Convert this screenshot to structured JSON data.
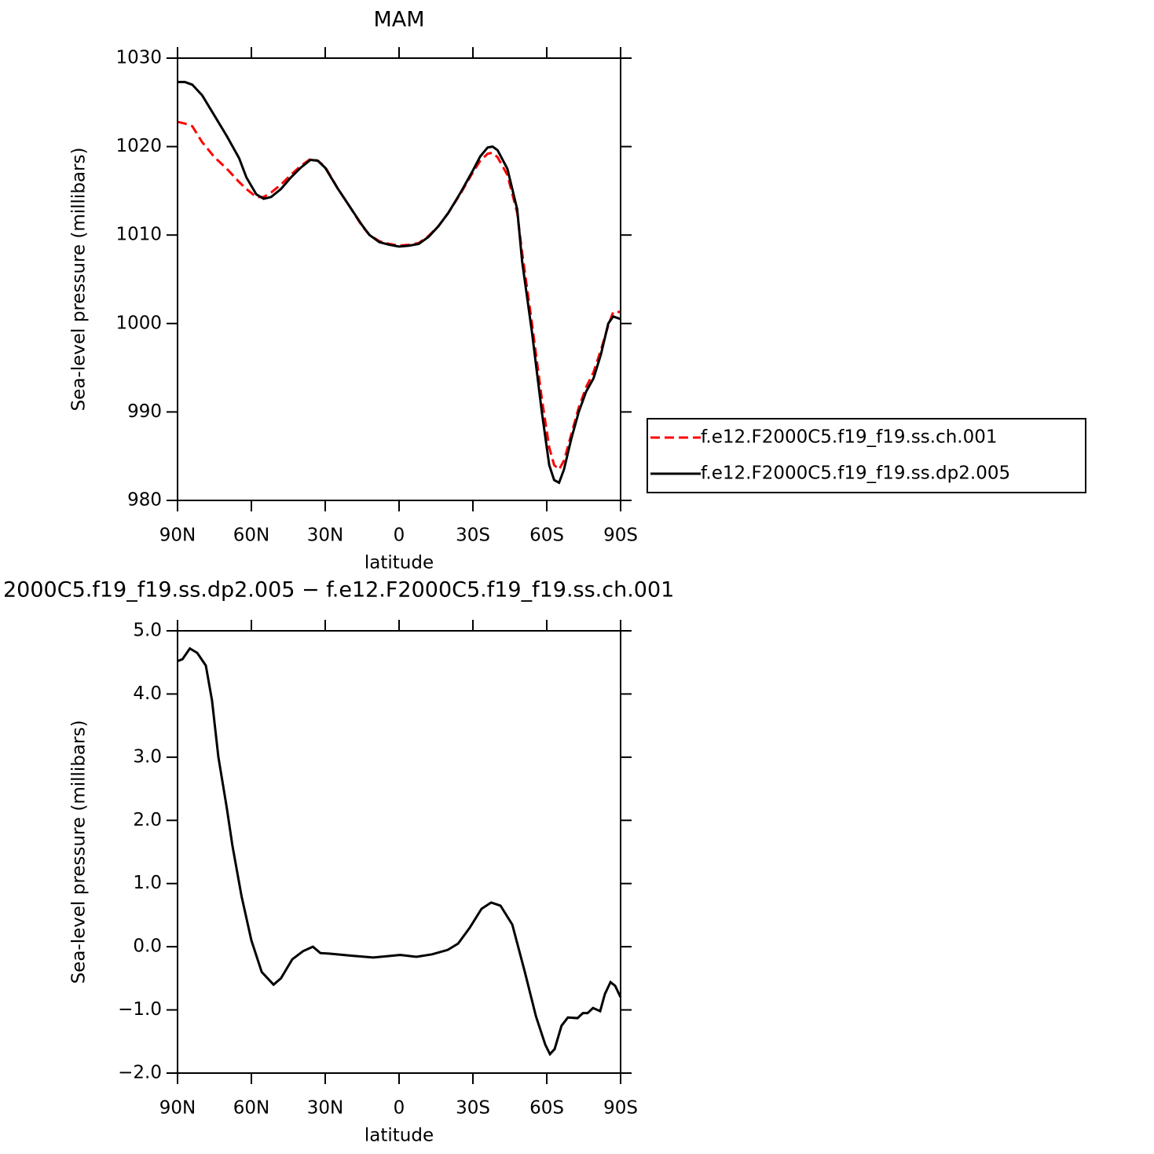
{
  "chart_data": [
    {
      "type": "line",
      "title": "MAM",
      "xlabel": "latitude",
      "ylabel": "Sea-level pressure (millibars)",
      "x": [
        90,
        87,
        84,
        80,
        75,
        70,
        65,
        62,
        58,
        55,
        52,
        48,
        44,
        40,
        36,
        33,
        30,
        25,
        20,
        15,
        12,
        8,
        4,
        0,
        -4,
        -8,
        -12,
        -16,
        -20,
        -25,
        -30,
        -33,
        -36,
        -38,
        -40,
        -44,
        -48,
        -50,
        -54,
        -58,
        -61,
        -63,
        -65,
        -67,
        -70,
        -73,
        -76,
        -79,
        -82,
        -85,
        -87,
        -90
      ],
      "series": [
        {
          "name": "f.e12.F2000C5.f19_f19.ss.ch.001",
          "color": "#ff0000",
          "dashed": true,
          "values": [
            1022.8,
            1022.6,
            1022.3,
            1020.5,
            1018.8,
            1017.5,
            1016.0,
            1015.2,
            1014.3,
            1014.3,
            1014.8,
            1015.7,
            1016.8,
            1017.8,
            1018.6,
            1018.4,
            1017.7,
            1015.3,
            1013.2,
            1011.0,
            1010.0,
            1009.3,
            1009.0,
            1008.8,
            1008.9,
            1009.1,
            1009.9,
            1011.0,
            1012.5,
            1014.7,
            1017.1,
            1018.4,
            1019.2,
            1019.3,
            1018.8,
            1016.8,
            1012.5,
            1008.0,
            1000.0,
            991.5,
            986.0,
            984.0,
            983.5,
            984.5,
            987.5,
            990.5,
            992.8,
            994.5,
            997.0,
            999.8,
            1001.3,
            1001.3
          ]
        },
        {
          "name": "f.e12.F2000C5.f19_f19.ss.dp2.005",
          "color": "#000000",
          "dashed": false,
          "values": [
            1027.3,
            1027.3,
            1027.0,
            1025.8,
            1023.5,
            1021.2,
            1018.7,
            1016.5,
            1014.6,
            1014.1,
            1014.3,
            1015.2,
            1016.5,
            1017.6,
            1018.5,
            1018.4,
            1017.6,
            1015.3,
            1013.2,
            1011.1,
            1010.0,
            1009.2,
            1008.9,
            1008.7,
            1008.8,
            1009.0,
            1009.8,
            1011.0,
            1012.5,
            1014.8,
            1017.3,
            1018.9,
            1019.9,
            1020.0,
            1019.6,
            1017.5,
            1012.9,
            1007.0,
            999.0,
            990.0,
            984.0,
            982.3,
            982.0,
            983.5,
            987.0,
            990.0,
            992.3,
            993.8,
            996.5,
            1000.0,
            1000.8,
            1000.5
          ]
        }
      ],
      "xlim": [
        90,
        -90
      ],
      "xticks": [
        {
          "value": 90,
          "label": "90N"
        },
        {
          "value": 60,
          "label": "60N"
        },
        {
          "value": 30,
          "label": "30N"
        },
        0,
        {
          "value": -30,
          "label": "30S"
        },
        {
          "value": -60,
          "label": "60S"
        },
        {
          "value": -90,
          "label": "90S"
        }
      ],
      "ylim": [
        980,
        1030
      ],
      "yticks": [
        980,
        990,
        1000,
        1010,
        1020,
        1030
      ],
      "legend": "right"
    },
    {
      "type": "line",
      "title": "2000C5.f19_f19.ss.dp2.005 − f.e12.F2000C5.f19_f19.ss.ch.001",
      "xlabel": "latitude",
      "ylabel": "Sea-level pressure (millibars)",
      "x": [
        90,
        88,
        85,
        82,
        78.5,
        76,
        73.4,
        70,
        67.7,
        64,
        60,
        55.8,
        51,
        48,
        43.4,
        39,
        35,
        32,
        28,
        20,
        10.5,
        5,
        -0.6,
        -7,
        -13.4,
        -19.8,
        -24,
        -28.7,
        -33.5,
        -37.4,
        -41.2,
        -46,
        -51.1,
        -55.6,
        -59.4,
        -61.3,
        -63.2,
        -66,
        -68.6,
        -72.5,
        -74.7,
        -76.6,
        -78.8,
        -81.7,
        -83.6,
        -85.9,
        -87.8,
        -90
      ],
      "series": [
        {
          "name": "difference",
          "color": "#000000",
          "dashed": false,
          "values": [
            4.52,
            4.55,
            4.72,
            4.65,
            4.45,
            3.9,
            3.0,
            2.2,
            1.6,
            0.8,
            0.1,
            -0.4,
            -0.6,
            -0.5,
            -0.2,
            -0.07,
            0.0,
            -0.1,
            -0.11,
            -0.14,
            -0.17,
            -0.15,
            -0.13,
            -0.16,
            -0.12,
            -0.05,
            0.05,
            0.3,
            0.6,
            0.7,
            0.65,
            0.35,
            -0.4,
            -1.1,
            -1.55,
            -1.7,
            -1.62,
            -1.25,
            -1.12,
            -1.13,
            -1.05,
            -1.05,
            -0.97,
            -1.02,
            -0.75,
            -0.56,
            -0.62,
            -0.8
          ]
        }
      ],
      "xlim": [
        90,
        -90
      ],
      "xticks": [
        {
          "value": 90,
          "label": "90N"
        },
        {
          "value": 60,
          "label": "60N"
        },
        {
          "value": 30,
          "label": "30N"
        },
        0,
        {
          "value": -30,
          "label": "30S"
        },
        {
          "value": -60,
          "label": "60S"
        },
        {
          "value": -90,
          "label": "90S"
        }
      ],
      "ylim": [
        -2,
        5
      ],
      "yticks": [
        {
          "value": -2,
          "label": "−2.0"
        },
        {
          "value": -1,
          "label": "−1.0"
        },
        {
          "value": 0,
          "label": "0.0"
        },
        {
          "value": 1,
          "label": "1.0"
        },
        {
          "value": 2,
          "label": "2.0"
        },
        {
          "value": 3,
          "label": "3.0"
        },
        {
          "value": 4,
          "label": "4.0"
        },
        {
          "value": 5,
          "label": "5.0"
        }
      ]
    }
  ]
}
